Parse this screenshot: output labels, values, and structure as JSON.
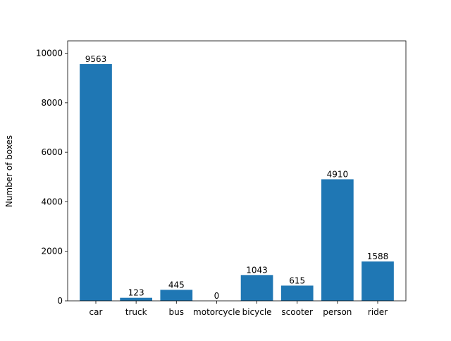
{
  "chart_data": {
    "type": "bar",
    "categories": [
      "car",
      "truck",
      "bus",
      "motorcycle",
      "bicycle",
      "scooter",
      "person",
      "rider"
    ],
    "values": [
      9563,
      123,
      445,
      0,
      1043,
      615,
      4910,
      1588
    ],
    "data_labels": [
      "9563",
      "123",
      "445",
      "0",
      "1043",
      "615",
      "4910",
      "1588"
    ],
    "title": "",
    "xlabel": "",
    "ylabel": "Number of boxes",
    "ylim": [
      0,
      10500
    ],
    "yticks": [
      0,
      2000,
      4000,
      6000,
      8000,
      10000
    ],
    "ytick_labels": [
      "0",
      "2000",
      "4000",
      "6000",
      "8000",
      "10000"
    ],
    "grid": false,
    "bar_color": "#1f77b4"
  }
}
